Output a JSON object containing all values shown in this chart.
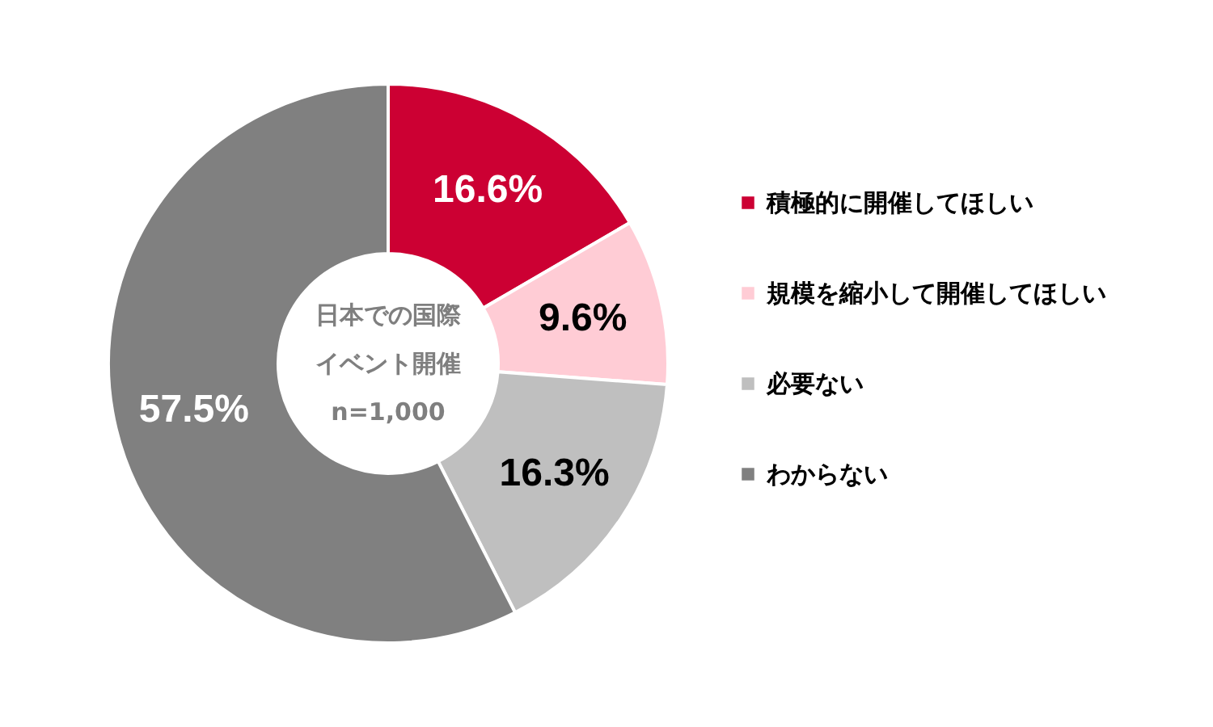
{
  "chart_data": {
    "type": "donut",
    "categories": [
      "積極的に開催してほしい",
      "規模を縮小して開催してほしい",
      "必要ない",
      "わからない"
    ],
    "values": [
      16.6,
      9.6,
      16.3,
      57.5
    ],
    "colors": [
      "#cc0033",
      "#ffccd5",
      "#bfbfbf",
      "#808080"
    ],
    "value_labels": [
      "16.6%",
      "9.6%",
      "16.3%",
      "57.5%"
    ],
    "annotations": [
      "日本での国際",
      "イベント開催",
      "n=1,000"
    ],
    "legend": "right"
  }
}
